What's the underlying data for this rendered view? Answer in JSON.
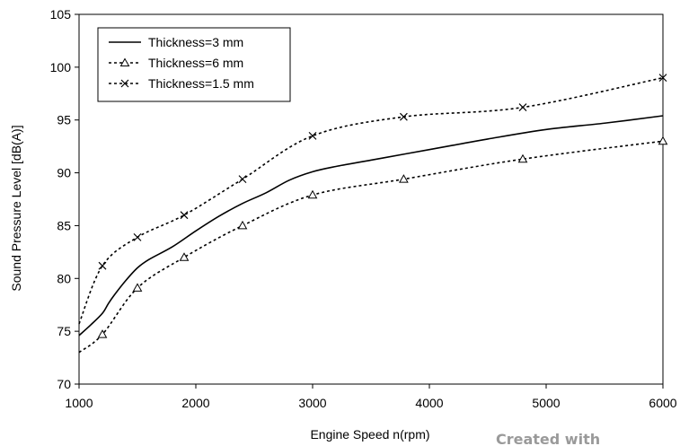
{
  "chart_data": {
    "type": "line",
    "title": "",
    "xlabel": "Engine Speed n(rpm)",
    "ylabel": "Sound Pressure Level [dB(A)]",
    "xlim": [
      1000,
      6000
    ],
    "ylim": [
      70,
      105
    ],
    "xticks": [
      "1000",
      "2000",
      "3000",
      "4000",
      "5000",
      "6000"
    ],
    "yticks": [
      "70",
      "75",
      "80",
      "85",
      "90",
      "95",
      "100",
      "105"
    ],
    "grid": false,
    "legend_position": "top-left",
    "series": [
      {
        "name": "Thickness=3 mm",
        "style": "solid",
        "marker": "none",
        "color": "#000000",
        "x": [
          1000,
          1100,
          1200,
          1250,
          1300,
          1400,
          1500,
          1600,
          1800,
          2000,
          2200,
          2400,
          2600,
          2800,
          3000,
          3200,
          3500,
          3800,
          4200,
          4500,
          5000,
          5500,
          6000
        ],
        "y": [
          74.6,
          75.6,
          76.7,
          77.6,
          78.4,
          79.8,
          81.0,
          81.8,
          83.0,
          84.5,
          85.9,
          87.1,
          88.1,
          89.3,
          90.1,
          90.6,
          91.2,
          91.8,
          92.6,
          93.2,
          94.1,
          94.7,
          95.4
        ]
      },
      {
        "name": "Thickness=6 mm",
        "style": "dashed",
        "marker": "triangle",
        "color": "#000000",
        "x": [
          1000,
          1200,
          1500,
          1900,
          2400,
          3000,
          3780,
          4800,
          6000
        ],
        "y": [
          73.0,
          74.7,
          79.1,
          82.0,
          85.0,
          87.9,
          89.4,
          91.3,
          93.0
        ],
        "markers_at": [
          1200,
          1500,
          1900,
          2400,
          3000,
          3780,
          4800,
          6000
        ]
      },
      {
        "name": "Thickness=1.5 mm",
        "style": "dashed",
        "marker": "x",
        "color": "#000000",
        "x": [
          1000,
          1200,
          1500,
          1900,
          2400,
          3000,
          3780,
          4800,
          6000
        ],
        "y": [
          75.7,
          81.2,
          83.9,
          86.0,
          89.4,
          93.5,
          95.3,
          96.2,
          99.0
        ],
        "markers_at": [
          1200,
          1500,
          1900,
          2400,
          3000,
          3780,
          4800,
          6000
        ]
      }
    ]
  },
  "watermark": "Created with"
}
